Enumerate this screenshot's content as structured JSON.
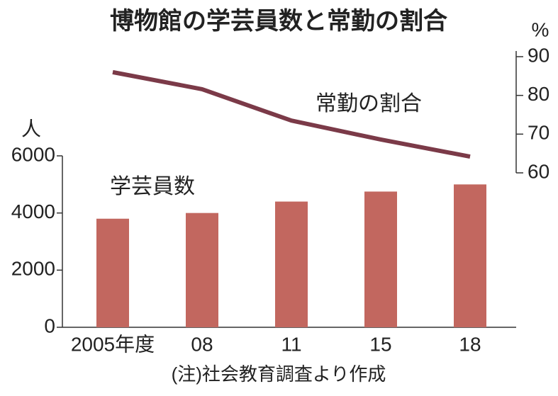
{
  "chart_data": {
    "type": "bar",
    "title": "博物館の学芸員数と常勤の割合",
    "y_unit": "人",
    "y2_unit": "%",
    "note": "(注)社会教育調査より作成",
    "categories": [
      "2005年度",
      "08",
      "11",
      "15",
      "18"
    ],
    "series": [
      {
        "name": "学芸員数",
        "type": "bar",
        "color": "#c2675f",
        "values": [
          3800,
          4000,
          4400,
          4750,
          5000
        ]
      },
      {
        "name": "常勤の割合",
        "type": "line",
        "axis": "y2",
        "color": "#7b3a48",
        "values": [
          86,
          81.6,
          73.5,
          68.6,
          64.2
        ]
      }
    ],
    "ylim": [
      0,
      6000
    ],
    "yticks": [
      0,
      2000,
      4000,
      6000
    ],
    "y2lim": [
      60,
      90
    ],
    "y2ticks": [
      60,
      70,
      80,
      90
    ]
  }
}
